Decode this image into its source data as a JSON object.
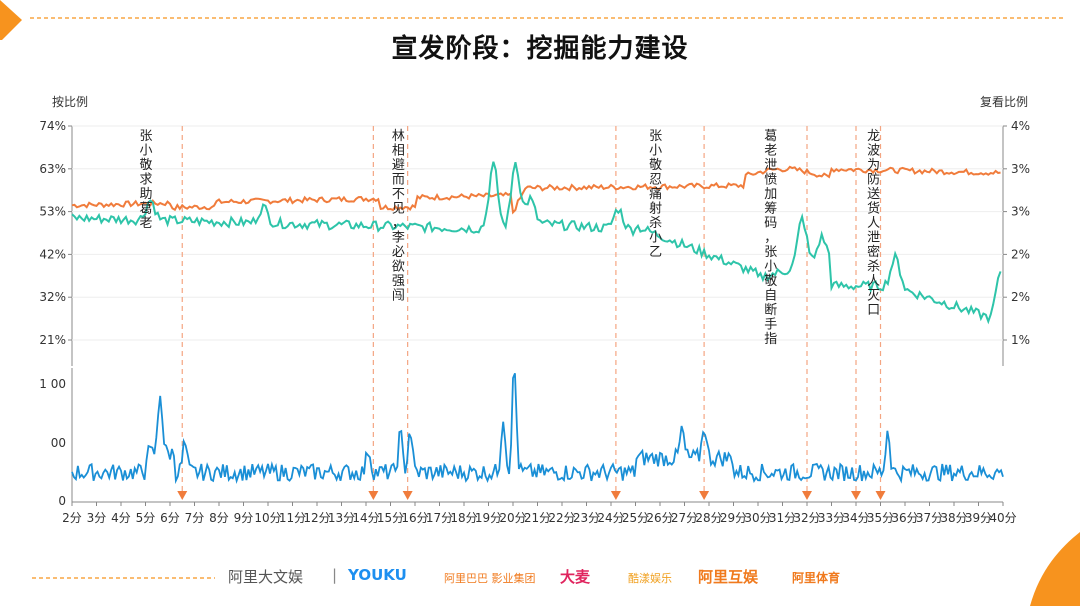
{
  "page": {
    "title": "宣发阶段：挖掘能力建设",
    "footer_brands": [
      {
        "text": "阿里大文娱",
        "color": "#555555"
      },
      {
        "text": "|",
        "color": "#888888"
      },
      {
        "text": "YOUKU",
        "color": "#1d8ff0"
      },
      {
        "text": "阿里巴巴 影业集团",
        "color": "#f07a1e"
      },
      {
        "text": "大麦",
        "color": "#e0245e"
      },
      {
        "text": "酷漾娱乐",
        "color": "#f0a020"
      },
      {
        "text": "阿里互娱",
        "color": "#f07a1e"
      },
      {
        "text": "阿里体育",
        "color": "#f07a1e"
      }
    ],
    "accent_color": "#f7931e"
  },
  "chart_data": [
    {
      "type": "line",
      "ylabel_left": "按比例",
      "ylabel_right": "复看比例",
      "left_ticks": [
        "74%",
        "63%",
        "53%",
        "42%",
        "32%",
        "21%"
      ],
      "right_ticks": [
        "4%",
        "3%",
        "3%",
        "2%",
        "2%",
        "1%"
      ],
      "ylim_left": [
        21,
        74
      ],
      "ylim_right": [
        1,
        4
      ],
      "series": [
        {
          "color": "#f07c3c",
          "axis": "left"
        },
        {
          "color": "#2ec4a9",
          "axis": "right"
        }
      ],
      "annotations": [
        {
          "x": 5,
          "text": "张小敬求助葛老"
        },
        {
          "x": 15.3,
          "text": "林相避而不见，李必欲强闯"
        },
        {
          "x": 25.8,
          "text": "张小敬忍痛射杀小乙"
        },
        {
          "x": 30.5,
          "text": "葛老泄愤加筹码，张小敬自断手指"
        },
        {
          "x": 34.7,
          "text": "龙波为防送货人泄密杀人灭口"
        }
      ],
      "event_lines_x": [
        6.5,
        14.3,
        15.7,
        24.2,
        27.8,
        32,
        34,
        35
      ]
    },
    {
      "type": "line",
      "yticks": [
        "1 00",
        "00",
        "0"
      ],
      "x_categories": [
        "2分",
        "3分",
        "4分",
        "5分",
        "6分",
        "7分",
        "8分",
        "9分",
        "10分",
        "11分",
        "12分",
        "13分",
        "14分",
        "15分",
        "16分",
        "17分",
        "18分",
        "19分",
        "20分",
        "21分",
        "22分",
        "23分",
        "24分",
        "25分",
        "26分",
        "27分",
        "28分",
        "29分",
        "30分",
        "31分",
        "32分",
        "33分",
        "34分",
        "35分",
        "36分",
        "37分",
        "38分",
        "39分",
        "40分"
      ],
      "series": [
        {
          "color": "#1a8fd6"
        }
      ],
      "event_markers_x": [
        6.5,
        14.3,
        15.7,
        24.2,
        27.8,
        32,
        34,
        35
      ]
    }
  ]
}
